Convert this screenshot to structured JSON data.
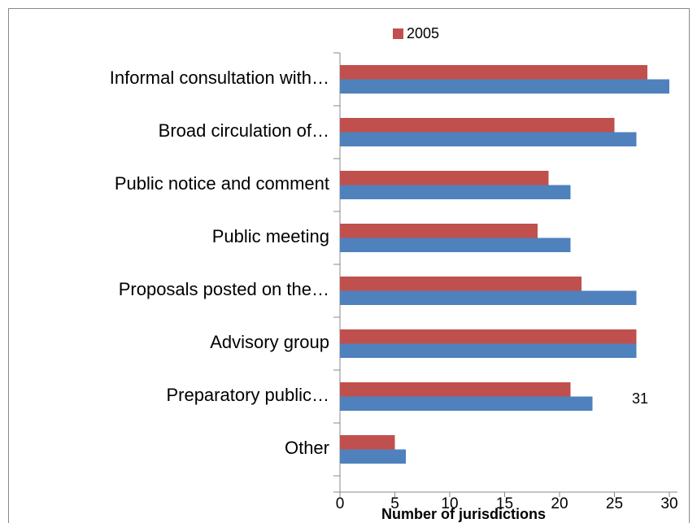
{
  "chart_data": {
    "type": "bar",
    "orientation": "horizontal",
    "categories": [
      "Informal consultation with…",
      "Broad circulation of…",
      "Public notice and comment",
      "Public meeting",
      "Proposals posted on the…",
      "Advisory group",
      "Preparatory public…",
      "Other"
    ],
    "series": [
      {
        "name": "2005",
        "color": "#c0504d",
        "values": [
          28,
          25,
          19,
          18,
          22,
          27,
          21,
          5
        ]
      },
      {
        "color": "#4f81bd",
        "values": [
          30,
          27,
          21,
          21,
          27,
          27,
          23,
          6
        ]
      }
    ],
    "xlim": [
      0,
      30
    ],
    "xticks": [
      0,
      5,
      10,
      15,
      20,
      25,
      30
    ],
    "x_label": "Number of jurisdictions",
    "annotations": [
      "31"
    ],
    "legend": "top"
  }
}
